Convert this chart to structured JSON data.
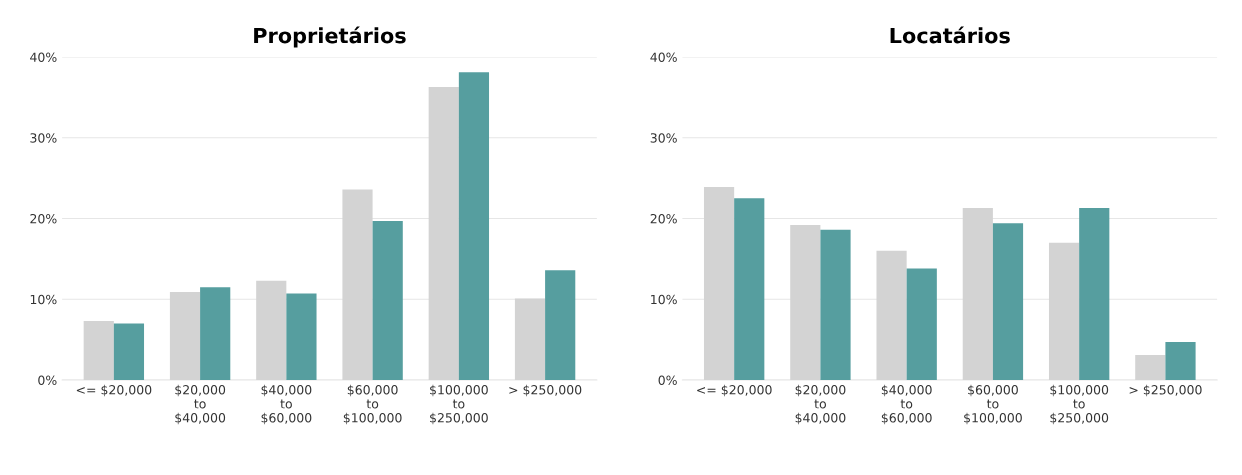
{
  "chart_data": [
    {
      "type": "bar",
      "title": "Proprietários",
      "categories": [
        "<= $20,000",
        "$20,000\nto\n$40,000",
        "$40,000\nto\n$60,000",
        "$60,000\nto\n$100,000",
        "$100,000\nto\n$250,000",
        "> $250,000"
      ],
      "series": [
        {
          "color": "#d3d3d3",
          "values": [
            7.3,
            10.9,
            12.3,
            23.6,
            36.3,
            10.1
          ]
        },
        {
          "color": "#569e9f",
          "values": [
            7.0,
            11.5,
            10.7,
            19.7,
            38.1,
            13.6
          ]
        }
      ],
      "ylim": [
        0,
        40
      ],
      "yticks": [
        {
          "value": 0,
          "label": "0%"
        },
        {
          "value": 10,
          "label": "10%"
        },
        {
          "value": 20,
          "label": "20%"
        },
        {
          "value": 30,
          "label": "30%"
        },
        {
          "value": 40,
          "label": "40%"
        }
      ],
      "grid": "y"
    },
    {
      "type": "bar",
      "title": "Locatários",
      "categories": [
        "<= $20,000",
        "$20,000\nto\n$40,000",
        "$40,000\nto\n$60,000",
        "$60,000\nto\n$100,000",
        "$100,000\nto\n$250,000",
        "> $250,000"
      ],
      "series": [
        {
          "color": "#d3d3d3",
          "values": [
            23.9,
            19.2,
            16.0,
            21.3,
            17.0,
            3.1
          ]
        },
        {
          "color": "#569e9f",
          "values": [
            22.5,
            18.6,
            13.8,
            19.4,
            21.3,
            4.7
          ]
        }
      ],
      "ylim": [
        0,
        40
      ],
      "yticks": [
        {
          "value": 0,
          "label": "0%"
        },
        {
          "value": 10,
          "label": "10%"
        },
        {
          "value": 20,
          "label": "20%"
        },
        {
          "value": 30,
          "label": "30%"
        },
        {
          "value": 40,
          "label": "40%"
        }
      ],
      "grid": "y"
    }
  ]
}
